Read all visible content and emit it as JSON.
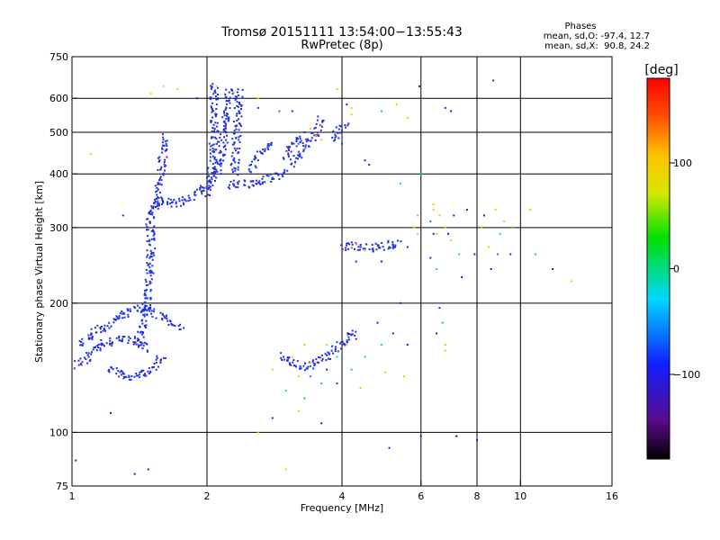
{
  "chart_data": {
    "type": "scatter",
    "title": "Tromsø 20151111 13:54:00−13:55:43",
    "subtitle": "RwPretec (8p)",
    "xlabel": "Frequency [MHz]",
    "ylabel": "Stationary phase Virtual Height [km]",
    "x_scale": "log2",
    "y_scale": "log",
    "xlim": [
      1,
      16
    ],
    "ylim": [
      75,
      750
    ],
    "x_ticks": [
      {
        "value": 1,
        "label": "1"
      },
      {
        "value": 2,
        "label": "2"
      },
      {
        "value": 4,
        "label": "4"
      },
      {
        "value": 6,
        "label": "6"
      },
      {
        "value": 8,
        "label": "8"
      },
      {
        "value": 10,
        "label": "10"
      },
      {
        "value": 16,
        "label": "16"
      }
    ],
    "x_grid": [
      2,
      4,
      6,
      8,
      10
    ],
    "y_ticks": [
      {
        "value": 75,
        "label": "75"
      },
      {
        "value": 100,
        "label": "100"
      },
      {
        "value": 200,
        "label": "200"
      },
      {
        "value": 300,
        "label": "300"
      },
      {
        "value": 400,
        "label": "400"
      },
      {
        "value": 500,
        "label": "500"
      },
      {
        "value": 600,
        "label": "600"
      },
      {
        "value": 750,
        "label": "750"
      }
    ],
    "y_grid": [
      100,
      200,
      300,
      400,
      500,
      600
    ],
    "grid": true,
    "stats": {
      "heading": "Phases",
      "line_O": "mean, sd,O: -97.4, 12.7",
      "line_X": "mean, sd,X:  90.8, 24.2"
    },
    "colorbar": {
      "label": "[deg]",
      "range": [
        -180,
        180
      ],
      "ticks": [
        {
          "value": 100,
          "label": "100"
        },
        {
          "value": 0,
          "label": "0"
        },
        {
          "value": -100,
          "label": "−100"
        }
      ]
    },
    "series": [
      {
        "mode": "O",
        "phase": -97.4,
        "color": "#1a2fe8",
        "segments": [
          [
            [
              1.03,
              143
            ],
            [
              1.08,
              150
            ],
            [
              1.14,
              157
            ],
            [
              1.2,
              162
            ],
            [
              1.28,
              165
            ],
            [
              1.35,
              164
            ],
            [
              1.42,
              160
            ],
            [
              1.48,
              156
            ]
          ],
          [
            [
              1.05,
              160
            ],
            [
              1.12,
              170
            ],
            [
              1.22,
              180
            ],
            [
              1.32,
              190
            ],
            [
              1.42,
              196
            ],
            [
              1.5,
              192
            ],
            [
              1.6,
              185
            ],
            [
              1.75,
              175
            ]
          ],
          [
            [
              1.2,
              140
            ],
            [
              1.28,
              136
            ],
            [
              1.36,
              135
            ],
            [
              1.44,
              136
            ],
            [
              1.52,
              140
            ],
            [
              1.56,
              146
            ],
            [
              1.6,
              152
            ]
          ],
          [
            [
              1.4,
              160
            ],
            [
              1.44,
              180
            ],
            [
              1.47,
              200
            ],
            [
              1.49,
              230
            ],
            [
              1.5,
              260
            ],
            [
              1.5,
              290
            ],
            [
              1.49,
              310
            ],
            [
              1.51,
              330
            ],
            [
              1.55,
              345
            ],
            [
              1.6,
              350
            ],
            [
              1.66,
              345
            ]
          ],
          [
            [
              1.52,
              330
            ],
            [
              1.56,
              360
            ],
            [
              1.58,
              400
            ],
            [
              1.6,
              450
            ],
            [
              1.61,
              490
            ]
          ],
          [
            [
              1.66,
              340
            ],
            [
              1.75,
              345
            ],
            [
              1.85,
              355
            ],
            [
              1.95,
              370
            ],
            [
              2.05,
              385
            ],
            [
              2.1,
              400
            ],
            [
              2.14,
              430
            ],
            [
              2.18,
              480
            ],
            [
              2.2,
              520
            ],
            [
              2.22,
              560
            ],
            [
              2.24,
              610
            ],
            [
              2.25,
              640
            ]
          ],
          [
            [
              2.0,
              360
            ],
            [
              2.04,
              400
            ],
            [
              2.06,
              450
            ],
            [
              2.08,
              500
            ],
            [
              2.08,
              540
            ],
            [
              2.07,
              580
            ],
            [
              2.08,
              620
            ],
            [
              2.08,
              650
            ]
          ],
          [
            [
              2.25,
              370
            ],
            [
              2.3,
              380
            ],
            [
              2.4,
              380
            ],
            [
              2.5,
              378
            ],
            [
              2.6,
              382
            ],
            [
              2.7,
              388
            ],
            [
              2.8,
              392
            ],
            [
              2.9,
              398
            ],
            [
              3.0,
              405
            ]
          ],
          [
            [
              2.3,
              400
            ],
            [
              2.32,
              450
            ],
            [
              2.33,
              500
            ],
            [
              2.34,
              550
            ],
            [
              2.35,
              600
            ],
            [
              2.36,
              630
            ]
          ],
          [
            [
              2.5,
              410
            ],
            [
              2.6,
              440
            ],
            [
              2.7,
              460
            ],
            [
              2.8,
              470
            ]
          ],
          [
            [
              3.1,
              420
            ],
            [
              3.2,
              440
            ],
            [
              3.3,
              460
            ],
            [
              3.4,
              480
            ],
            [
              3.5,
              500
            ],
            [
              3.55,
              520
            ],
            [
              3.6,
              540
            ]
          ],
          [
            [
              3.0,
              440
            ],
            [
              3.1,
              470
            ],
            [
              3.2,
              480
            ],
            [
              3.3,
              480
            ]
          ],
          [
            [
              3.8,
              480
            ],
            [
              3.9,
              500
            ],
            [
              4.0,
              510
            ],
            [
              4.1,
              520
            ]
          ],
          [
            [
              4.0,
              270
            ],
            [
              4.2,
              272
            ],
            [
              4.4,
              270
            ],
            [
              4.6,
              268
            ],
            [
              4.8,
              270
            ],
            [
              5.0,
              272
            ],
            [
              5.2,
              275
            ],
            [
              5.4,
              278
            ]
          ],
          [
            [
              2.9,
              150
            ],
            [
              3.1,
              145
            ],
            [
              3.3,
              142
            ],
            [
              3.5,
              145
            ],
            [
              3.7,
              150
            ],
            [
              3.9,
              158
            ],
            [
              4.1,
              165
            ],
            [
              4.3,
              172
            ]
          ]
        ]
      },
      {
        "mode": "X",
        "phase": 90.8,
        "color": "#ffc000",
        "points": [
          [
            1.5,
            615
          ],
          [
            1.6,
            640
          ],
          [
            2.1,
            640
          ],
          [
            2.3,
            620
          ],
          [
            2.6,
            600
          ],
          [
            3.4,
            510
          ],
          [
            3.6,
            520
          ],
          [
            3.3,
            460
          ],
          [
            3.9,
            630
          ],
          [
            4.2,
            570
          ],
          [
            5.3,
            580
          ],
          [
            6.4,
            330
          ],
          [
            6.6,
            320
          ],
          [
            6.8,
            300
          ],
          [
            6.5,
            290
          ],
          [
            7.0,
            280
          ],
          [
            8.2,
            300
          ],
          [
            8.8,
            330
          ],
          [
            9.2,
            310
          ],
          [
            8.5,
            270
          ],
          [
            4.2,
            270
          ],
          [
            4.3,
            275
          ],
          [
            4.5,
            265
          ],
          [
            5.8,
            300
          ],
          [
            2.8,
            140
          ],
          [
            3.1,
            150
          ],
          [
            3.4,
            145
          ],
          [
            3.7,
            160
          ],
          [
            4.1,
            160
          ],
          [
            4.5,
            150
          ],
          [
            5.0,
            138
          ],
          [
            5.5,
            135
          ],
          [
            3.3,
            160
          ],
          [
            10.5,
            330
          ],
          [
            13.0,
            225
          ],
          [
            2.6,
            100
          ],
          [
            3.0,
            82
          ],
          [
            3.2,
            135
          ],
          [
            6.8,
            155
          ],
          [
            5.9,
            290
          ]
        ]
      }
    ],
    "scatter_points": [
      [
        1.02,
        86,
        -140
      ],
      [
        1.38,
        80,
        -110
      ],
      [
        1.48,
        82,
        -100
      ],
      [
        1.22,
        111,
        -110
      ],
      [
        1.1,
        445,
        70
      ],
      [
        1.3,
        320,
        -100
      ],
      [
        1.72,
        630,
        80
      ],
      [
        1.9,
        600,
        -110
      ],
      [
        2.6,
        570,
        -100
      ],
      [
        2.9,
        560,
        -60
      ],
      [
        3.1,
        560,
        -100
      ],
      [
        4.1,
        580,
        -120
      ],
      [
        4.2,
        550,
        100
      ],
      [
        4.6,
        420,
        -110
      ],
      [
        4.9,
        560,
        -40
      ],
      [
        5.6,
        540,
        90
      ],
      [
        5.95,
        640,
        -150
      ],
      [
        6.8,
        570,
        -120
      ],
      [
        7.0,
        560,
        -100
      ],
      [
        8.7,
        660,
        -120
      ],
      [
        6.0,
        400,
        20
      ],
      [
        5.4,
        380,
        -30
      ],
      [
        6.5,
        240,
        -20
      ],
      [
        7.4,
        230,
        -90
      ],
      [
        7.3,
        260,
        -10
      ],
      [
        8.6,
        240,
        -100
      ],
      [
        9.6,
        300,
        40
      ],
      [
        9.5,
        260,
        -100
      ],
      [
        10.8,
        260,
        -10
      ],
      [
        11.8,
        240,
        -120
      ],
      [
        4.8,
        180,
        -100
      ],
      [
        5.4,
        200,
        -120
      ],
      [
        6.5,
        170,
        -150
      ],
      [
        6.6,
        195,
        -110
      ],
      [
        6.7,
        180,
        10
      ],
      [
        6.8,
        160,
        60
      ],
      [
        4.5,
        150,
        -30
      ],
      [
        3.9,
        150,
        -20
      ],
      [
        3.6,
        130,
        20
      ],
      [
        3.4,
        135,
        -60
      ],
      [
        3.0,
        125,
        -20
      ],
      [
        3.3,
        120,
        30
      ],
      [
        2.8,
        108,
        -110
      ],
      [
        3.6,
        105,
        -110
      ],
      [
        3.2,
        112,
        90
      ],
      [
        4.4,
        127,
        60
      ],
      [
        5.1,
        92,
        -110
      ],
      [
        6.0,
        98,
        -110
      ],
      [
        7.2,
        98,
        -160
      ],
      [
        8.0,
        96,
        -110
      ],
      [
        5.6,
        160,
        -110
      ],
      [
        5.2,
        170,
        -120
      ],
      [
        4.9,
        160,
        -20
      ],
      [
        4.3,
        165,
        -100
      ],
      [
        4.2,
        140,
        -40
      ],
      [
        3.9,
        130,
        -80
      ],
      [
        3.7,
        140,
        -120
      ],
      [
        6.4,
        290,
        -110
      ],
      [
        6.3,
        310,
        -60
      ],
      [
        6.9,
        290,
        -130
      ],
      [
        7.1,
        320,
        -110
      ],
      [
        7.6,
        330,
        -110
      ],
      [
        8.3,
        320,
        -100
      ],
      [
        9.0,
        290,
        -20
      ],
      [
        8.9,
        260,
        -60
      ],
      [
        7.9,
        260,
        -100
      ],
      [
        6.3,
        255,
        -120
      ],
      [
        5.6,
        270,
        -100
      ],
      [
        4.9,
        250,
        -100
      ],
      [
        4.3,
        250,
        -110
      ],
      [
        5.9,
        320,
        120
      ],
      [
        6.4,
        340,
        100
      ],
      [
        3.2,
        470,
        -60
      ],
      [
        3.5,
        490,
        120
      ],
      [
        3.6,
        480,
        60
      ],
      [
        3.3,
        500,
        -100
      ],
      [
        4.0,
        470,
        -80
      ],
      [
        4.5,
        430,
        -110
      ]
    ]
  }
}
